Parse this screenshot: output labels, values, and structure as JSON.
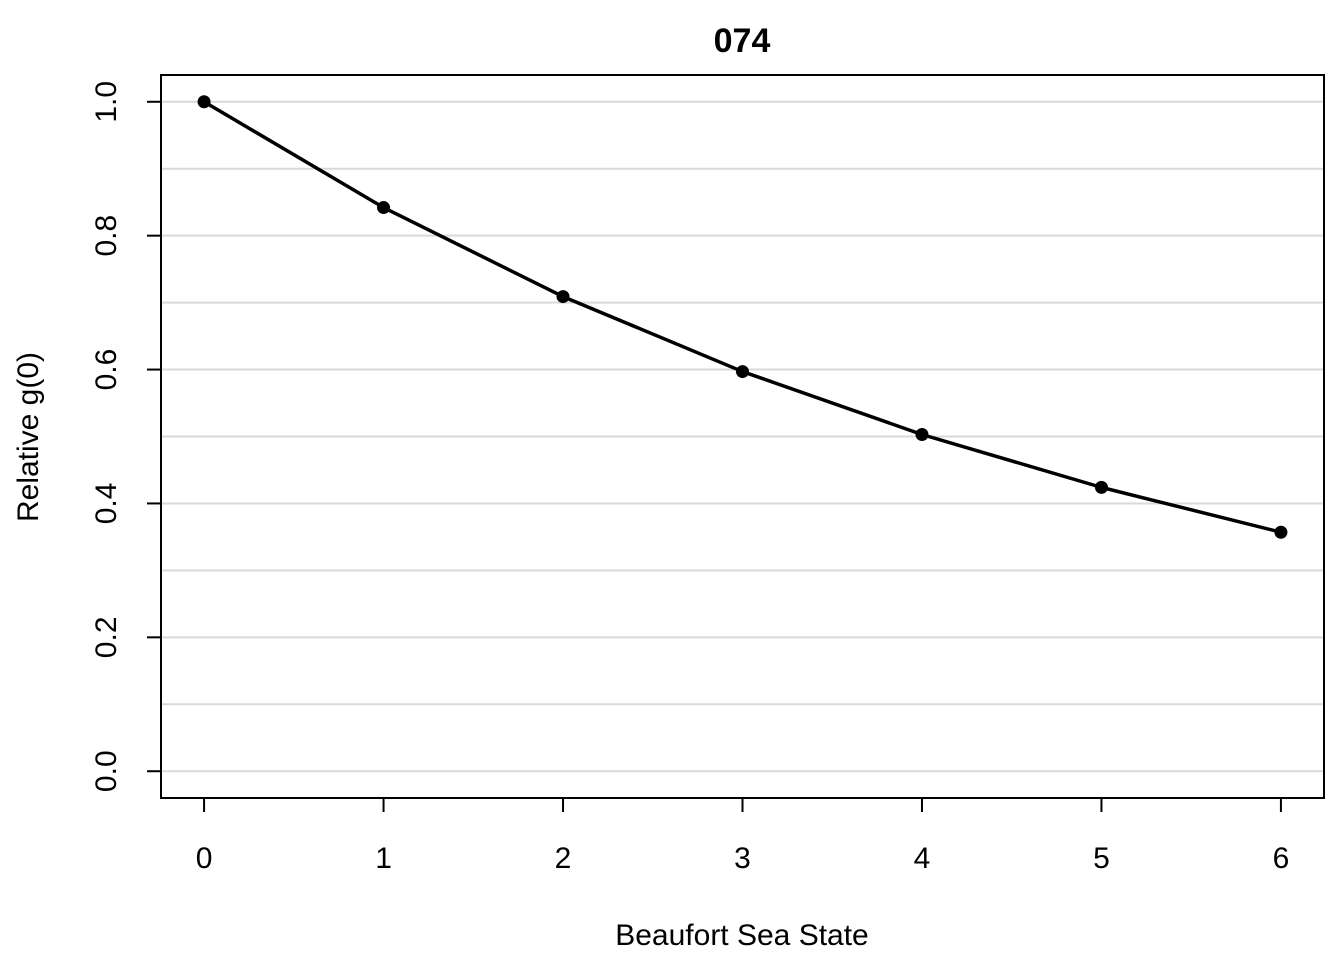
{
  "chart_data": {
    "type": "line",
    "title": "074",
    "xlabel": "Beaufort Sea State",
    "ylabel": "Relative g(0)",
    "x": [
      0,
      1,
      2,
      3,
      4,
      5,
      6
    ],
    "series": [
      {
        "values": [
          1.0,
          0.842,
          0.709,
          0.597,
          0.503,
          0.424,
          0.357
        ]
      }
    ],
    "xticks": [
      "0",
      "1",
      "2",
      "3",
      "4",
      "5",
      "6"
    ],
    "yticks": [
      "0.0",
      "0.2",
      "0.4",
      "0.6",
      "0.8",
      "1.0"
    ],
    "ytick_values": [
      0,
      0.2,
      0.4,
      0.6,
      0.8,
      1.0
    ],
    "gridlines": [
      0,
      0.1,
      0.2,
      0.3,
      0.4,
      0.5,
      0.6,
      0.7,
      0.8,
      0.9,
      1.0
    ],
    "xlim": [
      -0.24,
      6.24
    ],
    "ylim": [
      -0.04,
      1.04
    ],
    "grid": true,
    "colors": {
      "line": "#000000",
      "grid": "#d9d9d9"
    }
  }
}
